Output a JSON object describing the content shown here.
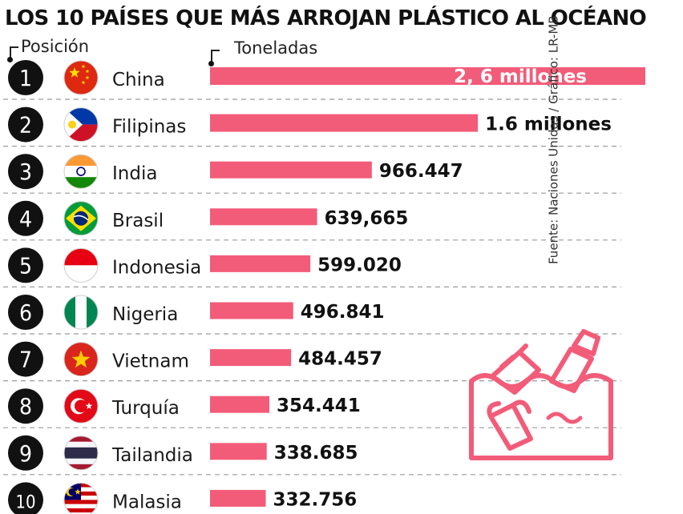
{
  "title": "LOS 10 PAÍSES QUE MÁS ARROJAN PLÁSTICO AL OCÉANO",
  "headers": {
    "position": "Posición",
    "tonnes": "Toneladas"
  },
  "source": "Fuente: Naciones Unidas / Gráfico: LR-MB",
  "colors": {
    "bar": "#f25c79",
    "badge": "#111111",
    "divider": "#9a9a9a",
    "illustration": "#f25c79"
  },
  "chart_data": {
    "type": "bar",
    "orientation": "horizontal",
    "title": "LOS 10 PAÍSES QUE MÁS ARROJAN PLÁSTICO AL OCÉANO",
    "xlabel": "Toneladas",
    "ylabel": "Posición",
    "xlim": [
      0,
      2600000
    ],
    "grid": false,
    "legend": "none",
    "categories": [
      "China",
      "Filipinas",
      "India",
      "Brasil",
      "Indonesia",
      "Nigeria",
      "Vietnam",
      "Turquía",
      "Tailandia",
      "Malasia"
    ],
    "ranks": [
      "1",
      "2",
      "3",
      "4",
      "5",
      "6",
      "7",
      "8",
      "9",
      "10"
    ],
    "values": [
      2600000,
      1600000,
      966447,
      639665,
      599020,
      496841,
      484457,
      354441,
      338685,
      332756
    ],
    "value_labels": [
      "2, 6 millones",
      "1.6 millones",
      "966.447",
      "639,665",
      "599.020",
      "496.841",
      "484.457",
      "354.441",
      "338.685",
      "332.756"
    ],
    "flags": [
      "china",
      "philippines",
      "india",
      "brazil",
      "indonesia",
      "nigeria",
      "vietnam",
      "turkey",
      "thailand",
      "malaysia"
    ]
  }
}
